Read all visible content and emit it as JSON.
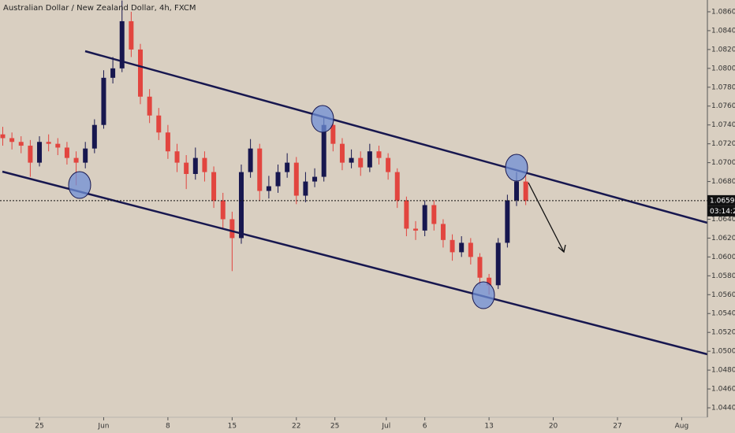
{
  "chart_data": {
    "type": "candlestick",
    "title": "Australian Dollar / New Zealand Dollar, 4h, FXCM",
    "up_color": "#17174f",
    "down_color": "#e2453f",
    "x": [
      -4,
      -3,
      -2,
      -1,
      0,
      1,
      2,
      3,
      4,
      5,
      6,
      7,
      8,
      9,
      10,
      11,
      12,
      13,
      14,
      15,
      16,
      17,
      18,
      19,
      20,
      21,
      22,
      23,
      24,
      25,
      26,
      27,
      28,
      29,
      30,
      31,
      32,
      33,
      34,
      35,
      36,
      37,
      38,
      39,
      40,
      41,
      42,
      43,
      44,
      45,
      46,
      47,
      48,
      49,
      50,
      51,
      52,
      53
    ],
    "open": [
      1.073,
      1.0726,
      1.0722,
      1.0718,
      1.07,
      1.0722,
      1.072,
      1.0716,
      1.0705,
      1.07,
      1.0715,
      1.074,
      1.079,
      1.08,
      1.085,
      1.082,
      1.077,
      1.075,
      1.0732,
      1.0712,
      1.07,
      1.0688,
      1.0705,
      1.069,
      1.066,
      1.064,
      1.062,
      1.069,
      1.0715,
      1.067,
      1.0675,
      1.069,
      1.07,
      1.0665,
      1.068,
      1.0685,
      1.074,
      1.072,
      1.07,
      1.0705,
      1.0695,
      1.0712,
      1.0705,
      1.069,
      1.066,
      1.063,
      1.0628,
      1.0655,
      1.0635,
      1.0618,
      1.0605,
      1.0615,
      1.06,
      1.0578,
      1.057,
      1.0615,
      1.066,
      1.068
    ],
    "high": [
      1.0738,
      1.0732,
      1.0728,
      1.0724,
      1.0728,
      1.073,
      1.0726,
      1.0722,
      1.0712,
      1.0722,
      1.0746,
      1.0798,
      1.0812,
      1.0872,
      1.086,
      1.0826,
      1.0778,
      1.0758,
      1.074,
      1.072,
      1.0708,
      1.0716,
      1.0712,
      1.0696,
      1.0668,
      1.0648,
      1.0698,
      1.0725,
      1.072,
      1.0686,
      1.0698,
      1.071,
      1.0706,
      1.069,
      1.0694,
      1.0748,
      1.0744,
      1.0726,
      1.0714,
      1.0712,
      1.072,
      1.0718,
      1.071,
      1.0694,
      1.0664,
      1.0638,
      1.066,
      1.066,
      1.064,
      1.0624,
      1.0622,
      1.062,
      1.0604,
      1.0582,
      1.062,
      1.0666,
      1.069,
      1.0686
    ],
    "low": [
      1.0718,
      1.0714,
      1.071,
      1.0685,
      1.0696,
      1.0712,
      1.0708,
      1.0698,
      1.0676,
      1.0694,
      1.071,
      1.0736,
      1.0784,
      1.0796,
      1.0812,
      1.0762,
      1.0742,
      1.0724,
      1.0704,
      1.069,
      1.0672,
      1.0682,
      1.068,
      1.0652,
      1.063,
      1.0585,
      1.0614,
      1.0684,
      1.066,
      1.0662,
      1.0668,
      1.0684,
      1.0656,
      1.0658,
      1.0674,
      1.068,
      1.0712,
      1.0692,
      1.0694,
      1.0686,
      1.069,
      1.0698,
      1.0682,
      1.0652,
      1.0622,
      1.0618,
      1.0622,
      1.0628,
      1.061,
      1.0596,
      1.06,
      1.0592,
      1.057,
      1.056,
      1.0566,
      1.061,
      1.0654,
      1.0655
    ],
    "close": [
      1.0726,
      1.0722,
      1.0718,
      1.07,
      1.0722,
      1.072,
      1.0716,
      1.0705,
      1.07,
      1.0715,
      1.074,
      1.079,
      1.08,
      1.085,
      1.082,
      1.077,
      1.075,
      1.0732,
      1.0712,
      1.07,
      1.0688,
      1.0705,
      1.069,
      1.066,
      1.064,
      1.062,
      1.069,
      1.0715,
      1.067,
      1.0675,
      1.069,
      1.07,
      1.0665,
      1.068,
      1.0685,
      1.074,
      1.072,
      1.07,
      1.0705,
      1.0695,
      1.0712,
      1.0705,
      1.069,
      1.066,
      1.063,
      1.0628,
      1.0655,
      1.0635,
      1.0618,
      1.0605,
      1.0615,
      1.06,
      1.0578,
      1.057,
      1.0615,
      1.066,
      1.068,
      1.066
    ],
    "xlim": [
      -4.3,
      72.8
    ],
    "xticks": [
      {
        "value": 0,
        "label": "25"
      },
      {
        "value": 7,
        "label": "Jun"
      },
      {
        "value": 14,
        "label": "8"
      },
      {
        "value": 21,
        "label": "15"
      },
      {
        "value": 28,
        "label": "22"
      },
      {
        "value": 32.2,
        "label": "25"
      },
      {
        "value": 37.8,
        "label": "Jul"
      },
      {
        "value": 42,
        "label": "6"
      },
      {
        "value": 49,
        "label": "13"
      },
      {
        "value": 56,
        "label": "20"
      },
      {
        "value": 63,
        "label": "27"
      },
      {
        "value": 70,
        "label": "Aug"
      }
    ],
    "ylim": [
      1.043,
      1.08725
    ],
    "yticks": [
      {
        "value": 1.044,
        "label": "1.04400"
      },
      {
        "value": 1.046,
        "label": "1.04600"
      },
      {
        "value": 1.048,
        "label": "1.04800"
      },
      {
        "value": 1.05,
        "label": "1.05000"
      },
      {
        "value": 1.052,
        "label": "1.05200"
      },
      {
        "value": 1.054,
        "label": "1.05400"
      },
      {
        "value": 1.056,
        "label": "1.05600"
      },
      {
        "value": 1.058,
        "label": "1.05800"
      },
      {
        "value": 1.06,
        "label": "1.06000"
      },
      {
        "value": 1.062,
        "label": "1.06200"
      },
      {
        "value": 1.064,
        "label": "1.06400"
      },
      {
        "value": 1.066,
        "label": "1.06600"
      },
      {
        "value": 1.068,
        "label": "1.06800"
      },
      {
        "value": 1.07,
        "label": "1.07000"
      },
      {
        "value": 1.072,
        "label": "1.07200"
      },
      {
        "value": 1.074,
        "label": "1.07400"
      },
      {
        "value": 1.076,
        "label": "1.07600"
      },
      {
        "value": 1.078,
        "label": "1.07800"
      },
      {
        "value": 1.08,
        "label": "1.08000"
      },
      {
        "value": 1.082,
        "label": "1.08200"
      },
      {
        "value": 1.084,
        "label": "1.08400"
      },
      {
        "value": 1.086,
        "label": "1.08600"
      }
    ],
    "last_price": {
      "value": 1.06597,
      "label": "1.06597"
    },
    "countdown": "03:14:25"
  }
}
